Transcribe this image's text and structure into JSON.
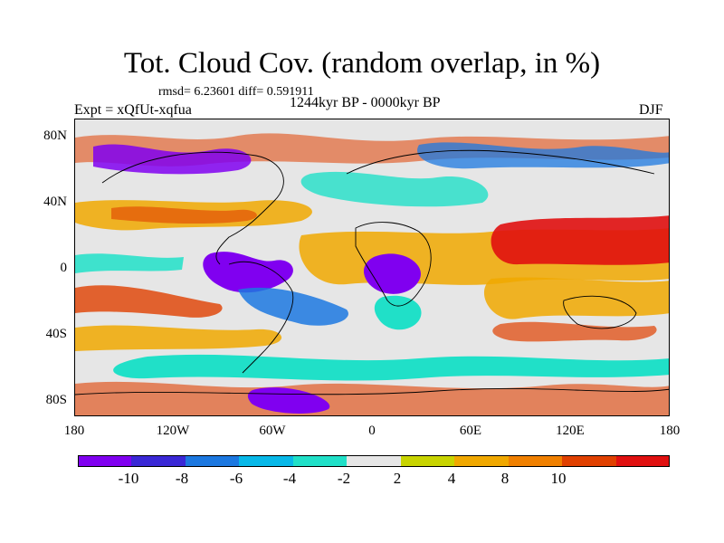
{
  "title": "Tot. Cloud Cov. (random overlap, in %)",
  "stats": "rmsd= 6.23601 diff= 0.591911",
  "experiment": "Expt = xQfUt-xqfua",
  "period": "1244kyr BP - 0000kyr BP",
  "season": "DJF",
  "axes": {
    "y_ticks": [
      "80N",
      "40N",
      "0",
      "40S",
      "80S"
    ],
    "x_ticks": [
      "180",
      "120W",
      "60W",
      "0",
      "60E",
      "120E",
      "180"
    ]
  },
  "colorbar": {
    "labels": [
      "-10",
      "-8",
      "-6",
      "-4",
      "-2",
      "2",
      "4",
      "8",
      "10"
    ],
    "colors": [
      "#8000f0",
      "#3a28d6",
      "#1c78e0",
      "#08b8e8",
      "#20e0c8",
      "#e6e6e6",
      "#c8d400",
      "#f0a800",
      "#f08000",
      "#e04000",
      "#e01010"
    ]
  },
  "palette": {
    "neutral": "#e6e6e6",
    "coast": "#000000"
  }
}
